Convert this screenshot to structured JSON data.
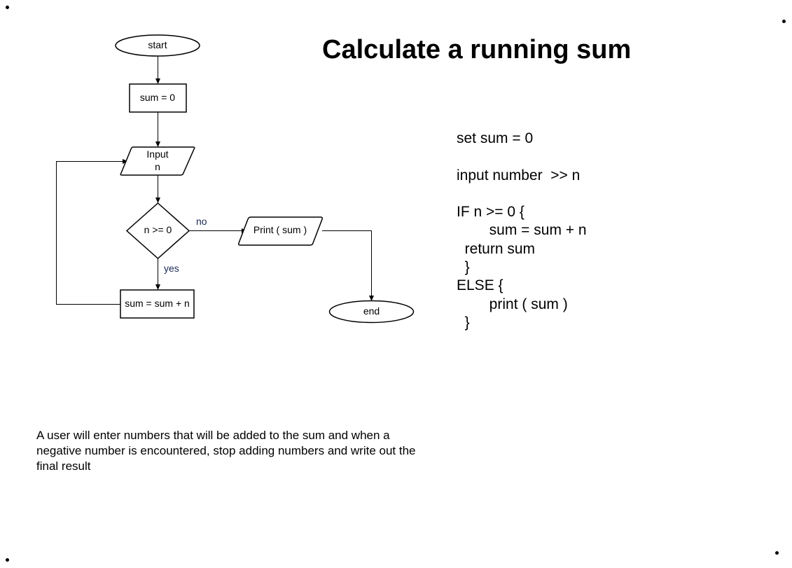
{
  "title": "Calculate a running sum",
  "flowchart": {
    "start": "start",
    "init": "sum = 0",
    "input_line1": "Input",
    "input_line2": "n",
    "decision": "n >= 0",
    "yes_label": "yes",
    "no_label": "no",
    "accumulate": "sum = sum + n",
    "print": "Print ( sum )",
    "end": "end"
  },
  "pseudocode": [
    "set sum = 0",
    "",
    "input number  >> n",
    "",
    "IF n >= 0 {",
    "        sum = sum + n",
    "  return sum",
    "  }",
    "ELSE {",
    "        print ( sum )",
    "  }"
  ],
  "description": "A user will enter numbers that will be added to the sum and when a negative number is encountered, stop adding numbers and write out the final result"
}
